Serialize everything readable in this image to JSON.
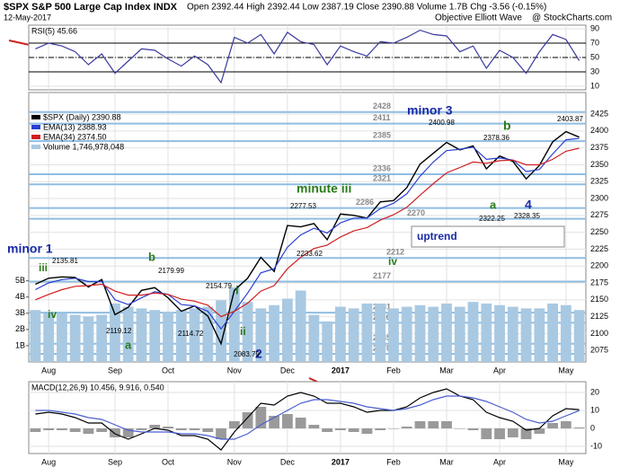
{
  "chart_data": [
    {
      "type": "line",
      "title": "RSI(5) 45.66",
      "series": [
        {
          "color": "#3a3a9e",
          "values": [
            62,
            70,
            66,
            58,
            40,
            55,
            28,
            45,
            62,
            60,
            48,
            38,
            52,
            40,
            15,
            78,
            70,
            82,
            55,
            85,
            72,
            68,
            40,
            66,
            58,
            52,
            72,
            70,
            78,
            88,
            82,
            80,
            58,
            66,
            35,
            60,
            50,
            28,
            58,
            82,
            75,
            45.66
          ]
        }
      ],
      "ylim": [
        5,
        95
      ],
      "yticks": [
        10,
        30,
        50,
        70,
        90
      ],
      "reference_lines": [
        30,
        50,
        70
      ],
      "grid": true
    },
    {
      "type": "line",
      "title": "$SPX S&P 500 Large Cap Index INDX",
      "subtitle": "12-May-2017",
      "quote": "Open 2392.44 High 2392.44 Low 2387.19 Close 2390.88 Volume 1.7B Chg -3.56 (-0.15%)",
      "source": "Objective Elliott Wave",
      "credit": "@ StockCharts.com",
      "categories": [
        null,
        "Aug",
        null,
        null,
        null,
        null,
        "Sep",
        null,
        null,
        null,
        "Oct",
        null,
        null,
        null,
        null,
        "Nov",
        null,
        null,
        null,
        "Dec",
        null,
        null,
        null,
        "2017",
        null,
        null,
        null,
        "Feb",
        null,
        null,
        null,
        "Mar",
        null,
        null,
        null,
        "Apr",
        null,
        null,
        null,
        null,
        "May",
        null
      ],
      "series": [
        {
          "name": "$SPX (Daily) 2390.88",
          "color": "#000000",
          "values": [
            2173,
            2182,
            2184,
            2183,
            2169,
            2180,
            2128,
            2139,
            2164,
            2168,
            2153,
            2133,
            2141,
            2126,
            2085,
            2164,
            2182,
            2213,
            2192,
            2260,
            2258,
            2263,
            2239,
            2277,
            2275,
            2271,
            2295,
            2297,
            2316,
            2351,
            2367,
            2383,
            2372,
            2378,
            2344,
            2363,
            2355,
            2329,
            2349,
            2384,
            2399,
            2390.88
          ]
        },
        {
          "name": "EMA(13) 2388.93",
          "color": "#2a3fd0",
          "values": [
            2165,
            2175,
            2180,
            2182,
            2177,
            2177,
            2150,
            2143,
            2153,
            2162,
            2158,
            2143,
            2141,
            2133,
            2107,
            2133,
            2160,
            2190,
            2196,
            2228,
            2246,
            2256,
            2249,
            2264,
            2271,
            2271,
            2285,
            2293,
            2307,
            2333,
            2354,
            2371,
            2373,
            2376,
            2358,
            2360,
            2357,
            2340,
            2343,
            2366,
            2387,
            2388.93
          ]
        },
        {
          "name": "EMA(34) 2374.50",
          "color": "#d02020",
          "values": [
            2150,
            2158,
            2165,
            2170,
            2171,
            2173,
            2163,
            2157,
            2157,
            2160,
            2158,
            2151,
            2148,
            2142,
            2125,
            2133,
            2145,
            2163,
            2171,
            2196,
            2213,
            2226,
            2231,
            2243,
            2252,
            2257,
            2268,
            2276,
            2287,
            2305,
            2322,
            2338,
            2346,
            2354,
            2352,
            2356,
            2357,
            2350,
            2350,
            2358,
            2370,
            2374.5
          ]
        },
        {
          "name": "Volume 1,746,978,048",
          "type": "bar",
          "axis": "y2",
          "color": "#a9c9e2",
          "values": [
            3.2,
            3.0,
            3.0,
            2.9,
            2.8,
            2.9,
            3.6,
            3.4,
            3.3,
            3.2,
            3.1,
            3.2,
            3.3,
            3.4,
            3.8,
            4.6,
            3.7,
            3.3,
            3.5,
            3.9,
            4.4,
            2.9,
            2.5,
            3.4,
            3.3,
            3.6,
            3.6,
            3.3,
            3.4,
            3.5,
            3.4,
            3.6,
            3.4,
            3.7,
            3.6,
            3.5,
            3.4,
            3.3,
            3.3,
            3.6,
            3.5,
            3.2
          ]
        }
      ],
      "ylim": [
        2058,
        2457
      ],
      "yticks": [
        2075,
        2100,
        2125,
        2150,
        2175,
        2200,
        2225,
        2250,
        2275,
        2300,
        2325,
        2350,
        2375,
        2400,
        2425
      ],
      "y2lim": [
        0,
        16.6
      ],
      "y2ticks": [
        {
          "value": 1,
          "label": "1B"
        },
        {
          "value": 2,
          "label": "2B"
        },
        {
          "value": 3,
          "label": "3B"
        },
        {
          "value": 4,
          "label": "4B"
        },
        {
          "value": 5,
          "label": "5B"
        }
      ],
      "levels": [
        2428,
        2411,
        2385,
        2336,
        2321,
        2286,
        2270,
        2212,
        2177,
        2131,
        2116,
        2085,
        2070
      ],
      "level_color": "#8fbde3",
      "annotations": [
        "minor 1",
        "iii",
        "iv",
        "b",
        "a",
        "i",
        "ii",
        "2",
        "minute iii",
        "iv",
        "minor 3",
        "b",
        "a",
        "4",
        "2135.81",
        "2179.99",
        "2154.79",
        "2119.12",
        "2114.72",
        "2083.79",
        "2277.53",
        "2233.62",
        "2400.98",
        "2378.36",
        "2322.25",
        "2328.35",
        "2403.87"
      ],
      "box_label": "uptrend",
      "grid": true
    },
    {
      "type": "line",
      "title": "MACD(12,26,9) 10.456, 9.916, 0.540",
      "categories": [
        null,
        "Aug",
        null,
        null,
        null,
        null,
        "Sep",
        null,
        null,
        null,
        "Oct",
        null,
        null,
        null,
        null,
        "Nov",
        null,
        null,
        null,
        "Dec",
        null,
        null,
        null,
        "2017",
        null,
        null,
        null,
        "Feb",
        null,
        null,
        null,
        "Mar",
        null,
        null,
        null,
        "Apr",
        null,
        null,
        null,
        null,
        "May",
        null
      ],
      "series": [
        {
          "type": "bar",
          "color": "#9a9a9a",
          "values": [
            -2,
            -1,
            -1,
            -2,
            -3,
            -2,
            -5,
            -5,
            -1,
            2,
            1,
            -1,
            -1,
            -2,
            -6,
            4,
            9,
            12,
            7,
            8,
            6,
            2,
            -2,
            -1,
            -2,
            -3,
            -1,
            0,
            1,
            4,
            4,
            4,
            0,
            -1,
            -6,
            -6,
            -5,
            -6,
            -3,
            3,
            4,
            0.54
          ]
        },
        {
          "color": "#000000",
          "values": [
            8,
            9,
            8,
            6,
            3,
            3,
            -3,
            -6,
            -3,
            0,
            -1,
            -4,
            -4,
            -6,
            -12,
            -2,
            6,
            14,
            13,
            18,
            20,
            18,
            14,
            14,
            12,
            9,
            10,
            10,
            12,
            17,
            20,
            22,
            18,
            16,
            9,
            6,
            4,
            -1,
            0,
            7,
            11,
            10.456
          ]
        },
        {
          "color": "#4a5ed0",
          "values": [
            10,
            10,
            9,
            8,
            6,
            5,
            2,
            -1,
            -2,
            -2,
            -2,
            -3,
            -3,
            -4,
            -6,
            -6,
            -3,
            2,
            6,
            10,
            14,
            16,
            16,
            15,
            14,
            12,
            11,
            10,
            11,
            13,
            16,
            18,
            18,
            17,
            15,
            12,
            9,
            5,
            3,
            4,
            7,
            9.916
          ]
        }
      ],
      "ylim": [
        -14,
        26
      ],
      "yticks": [
        -10,
        0,
        10,
        20
      ],
      "grid": true
    }
  ]
}
